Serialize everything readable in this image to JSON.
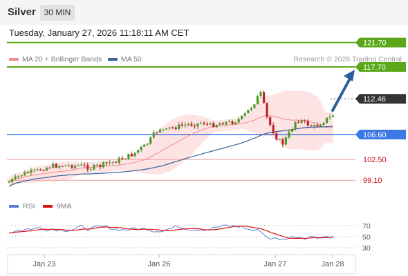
{
  "header": {
    "symbol": "Silver",
    "timeframe": "30 MIN"
  },
  "datetime": "Tuesday, January 27, 2026 11:18:11 AM CET",
  "legend": {
    "ma20": {
      "label": "MA 20 + Bollinger Bands",
      "color": "#f28b8b"
    },
    "ma50": {
      "label": "MA 50",
      "color": "#3a5f99"
    }
  },
  "credit": "Research © 2026 Trading Central",
  "levels": [
    {
      "value": 121.7,
      "label": "121.70",
      "kind": "resistance",
      "color": "#5aa81a"
    },
    {
      "value": 117.7,
      "label": "117.70",
      "kind": "resistance",
      "color": "#5aa81a"
    },
    {
      "value": 112.46,
      "label": "112.46",
      "kind": "last",
      "color": "#333333"
    },
    {
      "value": 106.6,
      "label": "106.60",
      "kind": "pivot",
      "color": "#3c78e6"
    },
    {
      "value": 102.5,
      "label": "102.50",
      "kind": "support",
      "color": "#cc1111"
    },
    {
      "value": 99.1,
      "label": "99.10",
      "kind": "support",
      "color": "#cc1111"
    }
  ],
  "rsi_legend": {
    "rsi": {
      "label": "RSI",
      "color": "#5b7fd6"
    },
    "ma9": {
      "label": "9MA",
      "color": "#dd1111"
    }
  },
  "rsi_axis": [
    "70",
    "50",
    "30"
  ],
  "x_labels": [
    "Jan 23",
    "Jan 26",
    "Jan 27",
    "Jan 28"
  ],
  "arrow_icon": "target-arrow-icon"
}
